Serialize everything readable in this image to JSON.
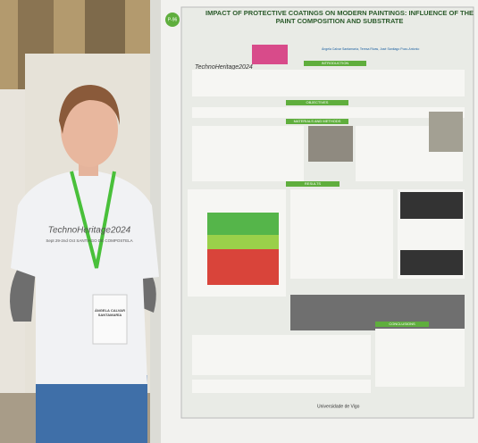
{
  "poster": {
    "id_label": "P-96",
    "title": "IMPACT OF PROTECTIVE COATINGS ON MODERN PAINTINGS: INFLUENCE OF THE PAINT COMPOSITION AND SUBSTRATE",
    "brand": "TechnoHeritage2024",
    "authors": "Ángela Calvar Santamaría, Teresa Rivas, José Santiago Pozo-Antonio",
    "sections": [
      "INTRODUCTION",
      "OBJECTIVES",
      "MATERIALS AND METHODS",
      "RESULTS",
      "CONCLUSIONS"
    ],
    "footer": "Universidade de Vigo"
  },
  "shirt": {
    "brand": "TechnoHeritage2024",
    "dates": "Sept 29-2nd Oct SANTIAGO DE COMPOSTELA"
  },
  "badge": {
    "name": "ÁNGELA CALVAR SANTAMARÍA"
  }
}
